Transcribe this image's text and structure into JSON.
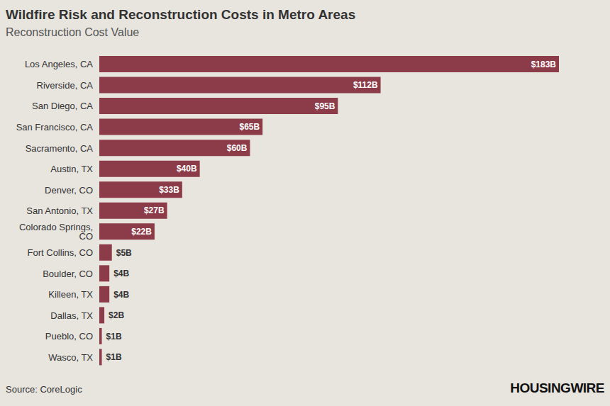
{
  "chart_data": {
    "type": "bar",
    "title": "Wildfire Risk and Reconstruction Costs in Metro Areas",
    "subtitle": "Reconstruction Cost Value",
    "source": "Source: CoreLogic",
    "brand": "HOUSINGWIRE",
    "orientation": "horizontal",
    "categories": [
      "Los Angeles, CA",
      "Riverside, CA",
      "San Diego, CA",
      "San Francisco, CA",
      "Sacramento, CA",
      "Austin, TX",
      "Denver, CO",
      "San Antonio, TX",
      "Colorado Springs, CO",
      "Fort Collins, CO",
      "Boulder, CO",
      "Killeen, TX",
      "Dallas, TX",
      "Pueblo, CO",
      "Wasco, TX"
    ],
    "values": [
      183,
      112,
      95,
      65,
      60,
      40,
      33,
      27,
      22,
      5,
      4,
      4,
      2,
      1,
      1
    ],
    "value_labels": [
      "$183B",
      "$112B",
      "$95B",
      "$65B",
      "$60B",
      "$40B",
      "$33B",
      "$27B",
      "$22B",
      "$5B",
      "$4B",
      "$4B",
      "$2B",
      "$1B",
      "$1B"
    ],
    "color": "#8c3b48",
    "xlim": [
      0,
      183
    ],
    "data_labels": true,
    "tick_labels": "y",
    "grid": false
  }
}
